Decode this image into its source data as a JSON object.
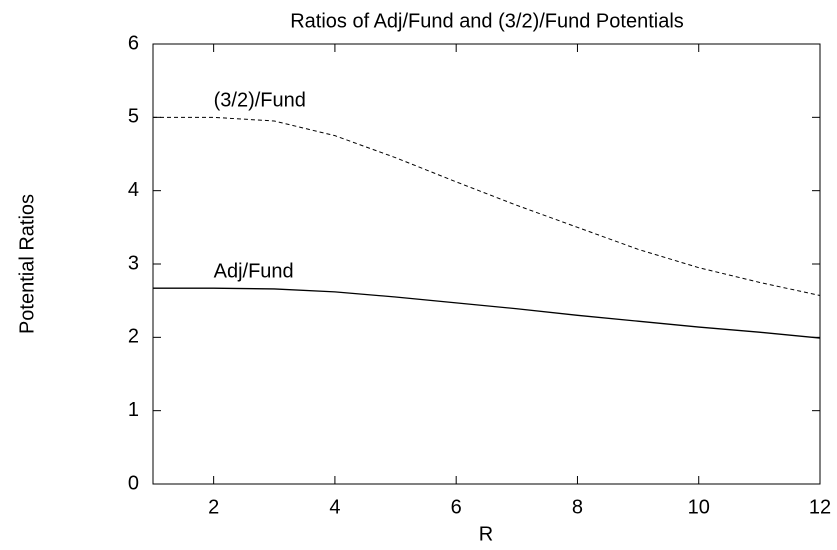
{
  "chart_data": {
    "type": "line",
    "title": "Ratios of Adj/Fund and (3/2)/Fund Potentials",
    "x_label": "R",
    "y_label": "Potential Ratios",
    "x": [
      1,
      2,
      3,
      4,
      5,
      6,
      7,
      8,
      9,
      10,
      11,
      12
    ],
    "series": [
      {
        "name": "(3/2)/Fund",
        "color": "#000000",
        "linestyle": "dashed",
        "values": [
          5.0,
          5.0,
          4.95,
          4.75,
          4.45,
          4.12,
          3.8,
          3.5,
          3.2,
          2.95,
          2.75,
          2.57
        ]
      },
      {
        "name": "Adj/Fund",
        "color": "#000000",
        "linestyle": "solid",
        "values": [
          2.67,
          2.67,
          2.66,
          2.62,
          2.55,
          2.47,
          2.39,
          2.3,
          2.22,
          2.14,
          2.07,
          1.99
        ]
      }
    ],
    "xlim": [
      1,
      12
    ],
    "xticks": [
      2,
      4,
      6,
      8,
      10,
      12
    ],
    "ylim": [
      0,
      6
    ],
    "yticks": [
      0,
      1,
      2,
      3,
      4,
      5,
      6
    ],
    "grid": false
  }
}
